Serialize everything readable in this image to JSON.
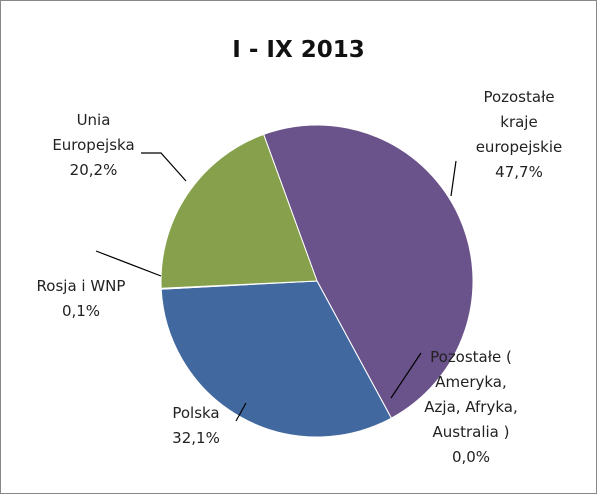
{
  "chart_data": {
    "type": "pie",
    "title": "I - IX 2013",
    "categories": [
      "Pozostałe kraje europejskie",
      "Pozostałe ( Ameryka, Azja, Afryka, Australia )",
      "Polska",
      "Rosja i WNP",
      "Unia Europejska"
    ],
    "values": [
      47.7,
      0.0,
      32.1,
      0.1,
      20.2
    ],
    "value_labels": [
      "47,7%",
      "0,0%",
      "32,1%",
      "0,1%",
      "20,2%"
    ],
    "colors": [
      "#6a528a",
      "#4f81bd",
      "#41699f",
      "#c0504d",
      "#86a04b"
    ]
  }
}
